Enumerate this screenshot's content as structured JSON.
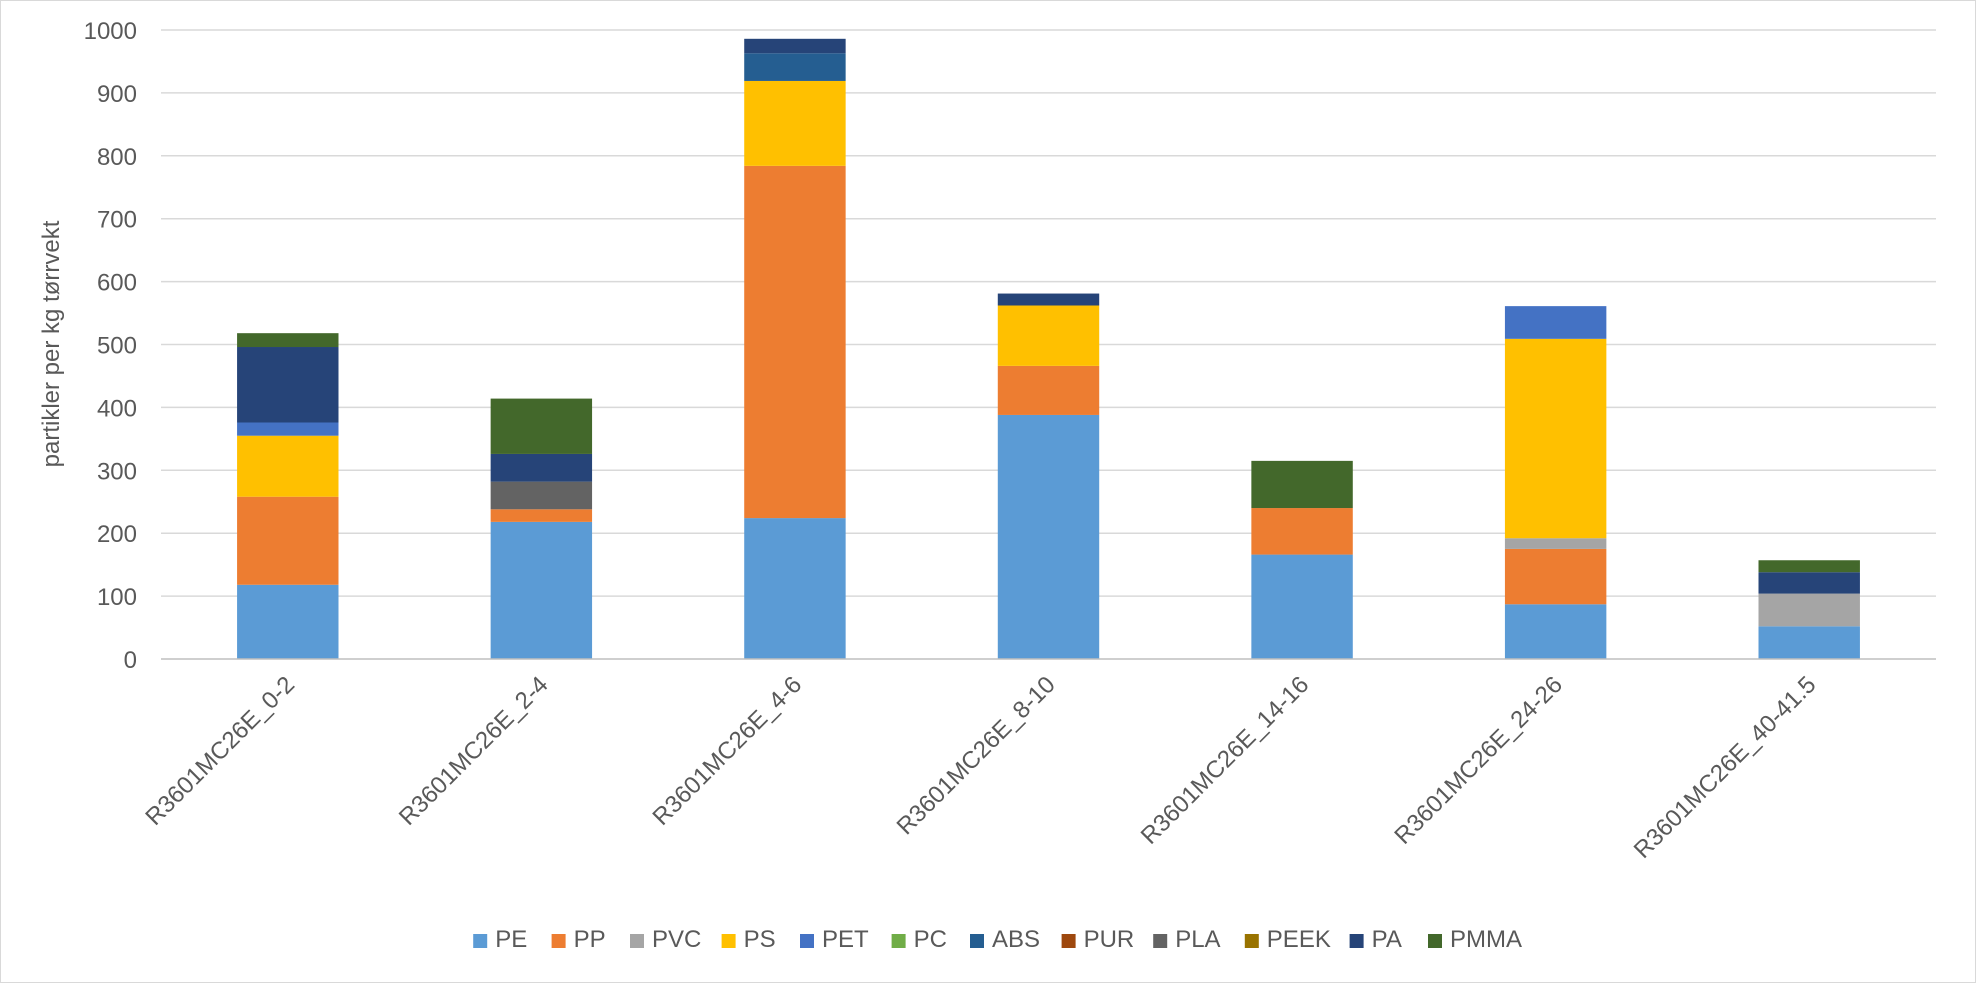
{
  "chart_data": {
    "type": "bar",
    "stacked": true,
    "title": "",
    "xlabel": "",
    "ylabel": "partikler per kg tørrvekt",
    "ylim": [
      0,
      1000
    ],
    "yticks": [
      "0",
      "100",
      "200",
      "300",
      "400",
      "500",
      "600",
      "700",
      "800",
      "900",
      "1000"
    ],
    "grid": true,
    "legend_position": "bottom",
    "categories": [
      "R3601MC26E_0-2",
      "R3601MC26E_2-4",
      "R3601MC26E_4-6",
      "R3601MC26E_8-10",
      "R3601MC26E_14-16",
      "R3601MC26E_24-26",
      "R3601MC26E_40-41.5"
    ],
    "series": [
      {
        "name": "PE",
        "color": "#5b9bd5",
        "values": [
          118,
          218,
          224,
          388,
          166,
          87,
          52
        ]
      },
      {
        "name": "PP",
        "color": "#ed7d31",
        "values": [
          140,
          20,
          560,
          78,
          74,
          88,
          0
        ]
      },
      {
        "name": "PVC",
        "color": "#a5a5a5",
        "values": [
          0,
          0,
          0,
          0,
          0,
          17,
          52
        ]
      },
      {
        "name": "PS",
        "color": "#ffc000",
        "values": [
          97,
          0,
          135,
          96,
          0,
          317,
          0
        ]
      },
      {
        "name": "PET",
        "color": "#4472c4",
        "values": [
          21,
          0,
          0,
          0,
          0,
          52,
          0
        ]
      },
      {
        "name": "PC",
        "color": "#70ad47",
        "values": [
          0,
          0,
          0,
          0,
          0,
          0,
          0
        ]
      },
      {
        "name": "ABS",
        "color": "#255e91",
        "values": [
          0,
          0,
          44,
          0,
          0,
          0,
          0
        ]
      },
      {
        "name": "PUR",
        "color": "#9e480e",
        "values": [
          0,
          0,
          0,
          0,
          0,
          0,
          0
        ]
      },
      {
        "name": "PLA",
        "color": "#636363",
        "values": [
          0,
          44,
          0,
          0,
          0,
          0,
          0
        ]
      },
      {
        "name": "PEEK",
        "color": "#997300",
        "values": [
          0,
          0,
          0,
          0,
          0,
          0,
          0
        ]
      },
      {
        "name": "PA",
        "color": "#264478",
        "values": [
          120,
          44,
          23,
          19,
          0,
          0,
          34
        ]
      },
      {
        "name": "PMMA",
        "color": "#43682b",
        "values": [
          22,
          88,
          0,
          0,
          75,
          0,
          19
        ]
      }
    ]
  }
}
